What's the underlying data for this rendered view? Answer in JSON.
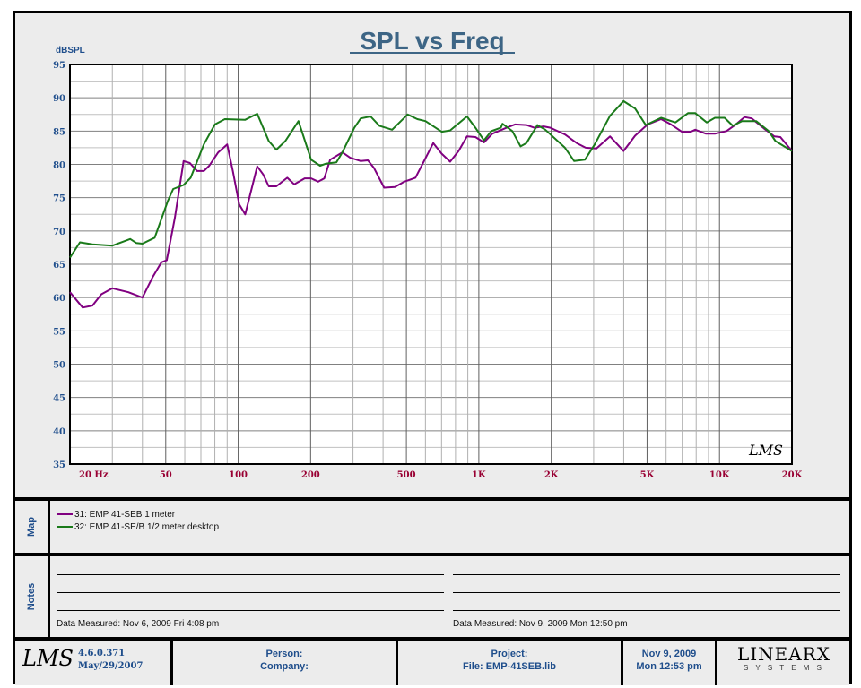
{
  "chart_data": {
    "type": "line",
    "title": "SPL vs Freq",
    "ylabel": "dBSPL",
    "xlabel": "",
    "xscale": "log",
    "xlim": [
      20,
      20000
    ],
    "ylim": [
      35,
      95
    ],
    "grid": true,
    "yticks": [
      "35",
      "40",
      "45",
      "50",
      "55",
      "60",
      "65",
      "70",
      "75",
      "80",
      "85",
      "90",
      "95"
    ],
    "xticks": [
      {
        "v": 20,
        "label": "20  Hz"
      },
      {
        "v": 50,
        "label": "50"
      },
      {
        "v": 100,
        "label": "100"
      },
      {
        "v": 200,
        "label": "200"
      },
      {
        "v": 500,
        "label": "500"
      },
      {
        "v": 1000,
        "label": "1K"
      },
      {
        "v": 2000,
        "label": "2K"
      },
      {
        "v": 5000,
        "label": "5K"
      },
      {
        "v": 10000,
        "label": "10K"
      },
      {
        "v": 20000,
        "label": "20K"
      }
    ],
    "series": [
      {
        "name": "31: EMP 41-SEB 1 meter",
        "color": "#800080",
        "points": [
          [
            20,
            60.8
          ],
          [
            22.6,
            58.5
          ],
          [
            24.8,
            58.8
          ],
          [
            27,
            60.5
          ],
          [
            30,
            61.4
          ],
          [
            35,
            60.8
          ],
          [
            40,
            60
          ],
          [
            44,
            63
          ],
          [
            48,
            65.3
          ],
          [
            50.5,
            65.6
          ],
          [
            54.6,
            72
          ],
          [
            59.3,
            80.5
          ],
          [
            63,
            80.2
          ],
          [
            67.5,
            79
          ],
          [
            72,
            79
          ],
          [
            75.8,
            79.8
          ],
          [
            82.6,
            81.8
          ],
          [
            90,
            83
          ],
          [
            95,
            79
          ],
          [
            101,
            74
          ],
          [
            107,
            72.5
          ],
          [
            120,
            79.7
          ],
          [
            127,
            78.5
          ],
          [
            134,
            76.7
          ],
          [
            144,
            76.7
          ],
          [
            160,
            78
          ],
          [
            171,
            77
          ],
          [
            189,
            77.9
          ],
          [
            201,
            77.9
          ],
          [
            215,
            77.4
          ],
          [
            228,
            77.9
          ],
          [
            241,
            80.7
          ],
          [
            271,
            81.8
          ],
          [
            292,
            81
          ],
          [
            323,
            80.5
          ],
          [
            346,
            80.6
          ],
          [
            366,
            79.5
          ],
          [
            404,
            76.5
          ],
          [
            448,
            76.6
          ],
          [
            490,
            77.4
          ],
          [
            545,
            78
          ],
          [
            592,
            80.5
          ],
          [
            647,
            83.2
          ],
          [
            701,
            81.6
          ],
          [
            760,
            80.4
          ],
          [
            824,
            82
          ],
          [
            893,
            84.2
          ],
          [
            968,
            84.1
          ],
          [
            1050,
            83.3
          ],
          [
            1137,
            84.6
          ],
          [
            1304,
            85.5
          ],
          [
            1413,
            86
          ],
          [
            1577,
            85.9
          ],
          [
            1700,
            85.5
          ],
          [
            1859,
            85.7
          ],
          [
            1983,
            85.5
          ],
          [
            2280,
            84.5
          ],
          [
            2550,
            83.2
          ],
          [
            2780,
            82.5
          ],
          [
            3080,
            82.4
          ],
          [
            3510,
            84.2
          ],
          [
            3990,
            82
          ],
          [
            4460,
            84.3
          ],
          [
            5030,
            86
          ],
          [
            5720,
            86.8
          ],
          [
            6290,
            86
          ],
          [
            6970,
            84.9
          ],
          [
            7590,
            84.9
          ],
          [
            7930,
            85.2
          ],
          [
            8790,
            84.6
          ],
          [
            9570,
            84.6
          ],
          [
            10700,
            85
          ],
          [
            11700,
            86
          ],
          [
            12700,
            87.1
          ],
          [
            13600,
            86.9
          ],
          [
            15300,
            85.4
          ],
          [
            16900,
            84.2
          ],
          [
            17900,
            84.1
          ],
          [
            20000,
            82
          ]
        ]
      },
      {
        "name": "32: EMP 41-SE/B 1/2 meter desktop",
        "color": "#1a7a1a",
        "points": [
          [
            20,
            66
          ],
          [
            22,
            68.3
          ],
          [
            24.8,
            68
          ],
          [
            30,
            67.8
          ],
          [
            35.6,
            68.8
          ],
          [
            37.7,
            68.2
          ],
          [
            40,
            68.1
          ],
          [
            45,
            69
          ],
          [
            51,
            74.5
          ],
          [
            53.7,
            76.3
          ],
          [
            59.3,
            76.9
          ],
          [
            63.5,
            78
          ],
          [
            72,
            83
          ],
          [
            80,
            86
          ],
          [
            88,
            86.8
          ],
          [
            107,
            86.7
          ],
          [
            120,
            87.6
          ],
          [
            134,
            83.5
          ],
          [
            144,
            82.2
          ],
          [
            157,
            83.5
          ],
          [
            178,
            86.5
          ],
          [
            201,
            80.7
          ],
          [
            219,
            79.8
          ],
          [
            231,
            80.1
          ],
          [
            256,
            80.3
          ],
          [
            271,
            81.8
          ],
          [
            304,
            85.5
          ],
          [
            323,
            86.9
          ],
          [
            355,
            87.2
          ],
          [
            386,
            85.8
          ],
          [
            436,
            85.2
          ],
          [
            506,
            87.5
          ],
          [
            555,
            86.8
          ],
          [
            600,
            86.5
          ],
          [
            701,
            84.9
          ],
          [
            760,
            85.1
          ],
          [
            893,
            87.2
          ],
          [
            968,
            85.5
          ],
          [
            1050,
            83.6
          ],
          [
            1128,
            85
          ],
          [
            1234,
            85.5
          ],
          [
            1254,
            86.1
          ],
          [
            1377,
            85
          ],
          [
            1490,
            82.7
          ],
          [
            1577,
            83.2
          ],
          [
            1751,
            85.9
          ],
          [
            1889,
            85.2
          ],
          [
            2280,
            82.5
          ],
          [
            2490,
            80.5
          ],
          [
            2760,
            80.7
          ],
          [
            3030,
            83
          ],
          [
            3510,
            87.3
          ],
          [
            3990,
            89.5
          ],
          [
            4460,
            88.4
          ],
          [
            4940,
            85.9
          ],
          [
            5720,
            87
          ],
          [
            6560,
            86.3
          ],
          [
            7400,
            87.7
          ],
          [
            7930,
            87.7
          ],
          [
            8850,
            86.3
          ],
          [
            9570,
            87
          ],
          [
            10500,
            87
          ],
          [
            11350,
            85.8
          ],
          [
            12400,
            86.5
          ],
          [
            14200,
            86.5
          ],
          [
            16000,
            85
          ],
          [
            17100,
            83.5
          ],
          [
            20000,
            82
          ]
        ]
      }
    ],
    "watermark": "LMS"
  },
  "map": {
    "label": "Map",
    "entries": [
      "31: EMP 41-SEB 1 meter",
      "32: EMP 41-SE/B 1/2 meter desktop"
    ]
  },
  "notes": {
    "label": "Notes",
    "left_measured": "Data Measured: Nov  6, 2009  Fri  4:08 pm",
    "right_measured": "Data Measured: Nov  9, 2009  Mon 12:50 pm"
  },
  "footer": {
    "logo": "LMS",
    "version": "4.6.0.371",
    "version_date": "May/29/2007",
    "person": "Person:",
    "company": "Company:",
    "project": "Project:",
    "file": "File: EMP-41SEB.lib",
    "date": "Nov  9, 2009",
    "time": "Mon 12:53 pm",
    "brand": "LINEARX",
    "brand_sub": "S Y S T E M S"
  }
}
